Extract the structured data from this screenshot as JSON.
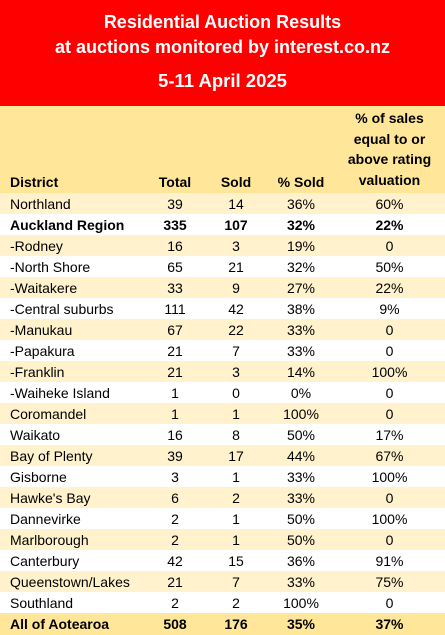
{
  "header": {
    "line1": "Residential Auction Results",
    "line2": "at auctions monitored by interest.co.nz",
    "date": "5-11 April 2025"
  },
  "columns": {
    "district": "District",
    "total": "Total",
    "sold": "Sold",
    "pct_sold": "% Sold",
    "valuation_lines": [
      "% of sales",
      "equal to or",
      "above rating",
      "valuation"
    ]
  },
  "rows": [
    {
      "district": "Northland",
      "total": "39",
      "sold": "14",
      "pct": "36%",
      "val": "60%"
    },
    {
      "district": "Auckland Region",
      "total": "335",
      "sold": "107",
      "pct": "32%",
      "val": "22%"
    },
    {
      "district": "-Rodney",
      "total": "16",
      "sold": "3",
      "pct": "19%",
      "val": "0"
    },
    {
      "district": "-North Shore",
      "total": "65",
      "sold": "21",
      "pct": "32%",
      "val": "50%"
    },
    {
      "district": "-Waitakere",
      "total": "33",
      "sold": "9",
      "pct": "27%",
      "val": "22%"
    },
    {
      "district": "-Central suburbs",
      "total": "111",
      "sold": "42",
      "pct": "38%",
      "val": "9%"
    },
    {
      "district": "-Manukau",
      "total": "67",
      "sold": "22",
      "pct": "33%",
      "val": "0"
    },
    {
      "district": "-Papakura",
      "total": "21",
      "sold": "7",
      "pct": "33%",
      "val": "0"
    },
    {
      "district": "-Franklin",
      "total": "21",
      "sold": "3",
      "pct": "14%",
      "val": "100%"
    },
    {
      "district": "-Waiheke Island",
      "total": "1",
      "sold": "0",
      "pct": "0%",
      "val": "0"
    },
    {
      "district": "Coromandel",
      "total": "1",
      "sold": "1",
      "pct": "100%",
      "val": "0"
    },
    {
      "district": "Waikato",
      "total": "16",
      "sold": "8",
      "pct": "50%",
      "val": "17%"
    },
    {
      "district": "Bay of Plenty",
      "total": "39",
      "sold": "17",
      "pct": "44%",
      "val": "67%"
    },
    {
      "district": "Gisborne",
      "total": "3",
      "sold": "1",
      "pct": "33%",
      "val": "100%"
    },
    {
      "district": "Hawke's Bay",
      "total": "6",
      "sold": "2",
      "pct": "33%",
      "val": "0"
    },
    {
      "district": "Dannevirke",
      "total": "2",
      "sold": "1",
      "pct": "50%",
      "val": "100%"
    },
    {
      "district": "Marlborough",
      "total": "2",
      "sold": "1",
      "pct": "50%",
      "val": "0"
    },
    {
      "district": "Canterbury",
      "total": "42",
      "sold": "15",
      "pct": "36%",
      "val": "91%"
    },
    {
      "district": "Queenstown/Lakes",
      "total": "21",
      "sold": "7",
      "pct": "33%",
      "val": "75%"
    },
    {
      "district": "Southland",
      "total": "2",
      "sold": "2",
      "pct": "100%",
      "val": "0"
    }
  ],
  "total_row": {
    "district": "All of Aotearoa",
    "total": "508",
    "sold": "176",
    "pct": "35%",
    "val": "37%"
  },
  "colors": {
    "header_bg": "#ff0000",
    "header_text": "#ffffff",
    "column_header_bg": "#ffe699",
    "stripe_bg": "#fff2cc",
    "row_bg": "#ffffff"
  }
}
